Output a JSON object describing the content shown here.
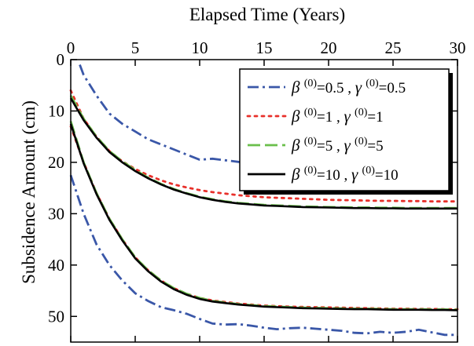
{
  "chart_data": {
    "type": "line",
    "xlabel": "Elapsed Time (Years)",
    "ylabel": "Subsidence Amount (cm)",
    "xlim": [
      0,
      30
    ],
    "ylim": [
      0,
      55
    ],
    "y_inverted": true,
    "x_axis_position": "top",
    "grid": false,
    "legend_position": "top-right",
    "x_ticks": [
      0,
      5,
      10,
      15,
      20,
      25,
      30
    ],
    "y_ticks": [
      0,
      10,
      20,
      30,
      40,
      50
    ],
    "series": [
      {
        "name": "β(0)=0.5 , γ(0)=0.5",
        "greek1": "β",
        "val1": "=0.5",
        "greek2": "γ",
        "val2": "=0.5",
        "color": "#3a57a8",
        "dash": "14,5,3,5",
        "curves": [
          {
            "x": [
              0.7,
              1,
              2,
              3,
              4,
              5,
              6,
              7,
              8,
              9,
              10,
              11,
              12,
              13,
              14,
              15
            ],
            "y": [
              1,
              3,
              7,
              10.5,
              12.5,
              14,
              15.5,
              16.5,
              17.5,
              18.5,
              19.5,
              19.3,
              19.6,
              19.9,
              20.1,
              20.3
            ]
          },
          {
            "x": [
              0,
              1,
              2,
              3,
              4,
              5,
              6,
              7,
              8,
              9,
              10,
              11,
              12,
              13,
              14,
              15,
              16,
              17,
              18,
              19,
              20,
              21,
              22,
              23,
              24,
              25,
              26,
              27,
              28,
              29,
              30
            ],
            "y": [
              22.5,
              30,
              36,
              40,
              43,
              45.5,
              47,
              48.2,
              48.8,
              49.5,
              50.5,
              51.4,
              51.6,
              51.5,
              51.8,
              52.2,
              52.5,
              52.3,
              52.2,
              52.4,
              52.6,
              52.8,
              53.2,
              53.3,
              53,
              53.2,
              53,
              52.6,
              53.1,
              53.6,
              53.6
            ]
          }
        ]
      },
      {
        "name": "β(0)=1 , γ(0)=1",
        "greek1": "β",
        "val1": "=1",
        "greek2": "γ",
        "val2": "=1",
        "color": "#e8302a",
        "dash": "3,6",
        "curves": [
          {
            "x": [
              0,
              1,
              2,
              3,
              4,
              5,
              6,
              7,
              8,
              9,
              10,
              11,
              12,
              13,
              14,
              15,
              16,
              17,
              18,
              19,
              20,
              21,
              22,
              23,
              24,
              25,
              26,
              27,
              28,
              29,
              30
            ],
            "y": [
              6,
              11.5,
              15,
              17.8,
              19.8,
              21.3,
              22.5,
              23.5,
              24.3,
              24.9,
              25.4,
              25.8,
              26.1,
              26.4,
              26.6,
              26.8,
              26.9,
              27,
              27.1,
              27.2,
              27.3,
              27.35,
              27.4,
              27.45,
              27.5,
              27.5,
              27.55,
              27.55,
              27.6,
              27.6,
              27.6
            ]
          },
          {
            "x": [
              0,
              1,
              2,
              3,
              4,
              5,
              6,
              7,
              8,
              9,
              10,
              11,
              12,
              13,
              14,
              15,
              16,
              17,
              18,
              19,
              20,
              21,
              22,
              23,
              24,
              25,
              26,
              27,
              28,
              29,
              30
            ],
            "y": [
              13,
              20,
              26,
              31,
              35,
              38.5,
              41,
              43,
              44.5,
              45.6,
              46.4,
              46.9,
              47.2,
              47.5,
              47.7,
              47.9,
              48,
              48.1,
              48.15,
              48.2,
              48.25,
              48.3,
              48.35,
              48.4,
              48.45,
              48.5,
              48.5,
              48.55,
              48.55,
              48.6,
              48.6
            ]
          }
        ]
      },
      {
        "name": "β(0)=5 , γ(0)=5",
        "greek1": "β",
        "val1": "=5",
        "greek2": "γ",
        "val2": "=5",
        "color": "#6abf4b",
        "dash": "16,6",
        "curves": [
          {
            "x": [
              0,
              1,
              2,
              3,
              4,
              5,
              6,
              7,
              8,
              9,
              10,
              11,
              12,
              13,
              14,
              15,
              16,
              17,
              18,
              19,
              20,
              21,
              22,
              23,
              24,
              25,
              26,
              27,
              28,
              29,
              30
            ],
            "y": [
              7,
              11.5,
              15,
              17.8,
              19.8,
              21.5,
              23,
              24.2,
              25.2,
              26,
              26.7,
              27.2,
              27.6,
              27.9,
              28.1,
              28.3,
              28.4,
              28.5,
              28.6,
              28.65,
              28.7,
              28.75,
              28.8,
              28.8,
              28.85,
              28.85,
              28.9,
              28.9,
              28.9,
              28.9,
              28.9
            ]
          },
          {
            "x": [
              0,
              1,
              2,
              3,
              4,
              5,
              6,
              7,
              8,
              9,
              10,
              11,
              12,
              13,
              14,
              15,
              16,
              17,
              18,
              19,
              20,
              21,
              22,
              23,
              24,
              25,
              26,
              27,
              28,
              29,
              30
            ],
            "y": [
              12,
              20,
              26,
              31,
              35,
              38.5,
              41,
              43,
              44.5,
              45.6,
              46.4,
              47,
              47.3,
              47.6,
              47.8,
              48,
              48.1,
              48.2,
              48.3,
              48.35,
              48.4,
              48.45,
              48.5,
              48.5,
              48.55,
              48.6,
              48.6,
              48.6,
              48.65,
              48.65,
              48.7
            ]
          }
        ]
      },
      {
        "name": "β(0)=10 , γ(0)=10",
        "greek1": "β",
        "val1": "=10",
        "greek2": "γ",
        "val2": "=10",
        "color": "#000000",
        "dash": "",
        "curves": [
          {
            "x": [
              0,
              1,
              2,
              3,
              4,
              5,
              6,
              7,
              8,
              9,
              10,
              11,
              12,
              13,
              14,
              15,
              16,
              17,
              18,
              19,
              20,
              21,
              22,
              23,
              24,
              25,
              26,
              27,
              28,
              29,
              30
            ],
            "y": [
              7.5,
              11.8,
              15.2,
              18,
              20,
              21.7,
              23.1,
              24.3,
              25.3,
              26.1,
              26.8,
              27.3,
              27.7,
              28,
              28.2,
              28.4,
              28.5,
              28.6,
              28.7,
              28.75,
              28.8,
              28.85,
              28.9,
              28.9,
              28.95,
              28.95,
              29,
              29,
              29,
              29,
              29
            ]
          },
          {
            "x": [
              0,
              1,
              2,
              3,
              4,
              5,
              6,
              7,
              8,
              9,
              10,
              11,
              12,
              13,
              14,
              15,
              16,
              17,
              18,
              19,
              20,
              21,
              22,
              23,
              24,
              25,
              26,
              27,
              28,
              29,
              30
            ],
            "y": [
              12.5,
              20.2,
              26.2,
              31.2,
              35.2,
              38.7,
              41.2,
              43.2,
              44.7,
              45.8,
              46.6,
              47.1,
              47.4,
              47.7,
              47.9,
              48.1,
              48.2,
              48.3,
              48.4,
              48.45,
              48.5,
              48.55,
              48.6,
              48.6,
              48.65,
              48.7,
              48.7,
              48.7,
              48.75,
              48.75,
              48.8
            ]
          }
        ]
      }
    ]
  }
}
